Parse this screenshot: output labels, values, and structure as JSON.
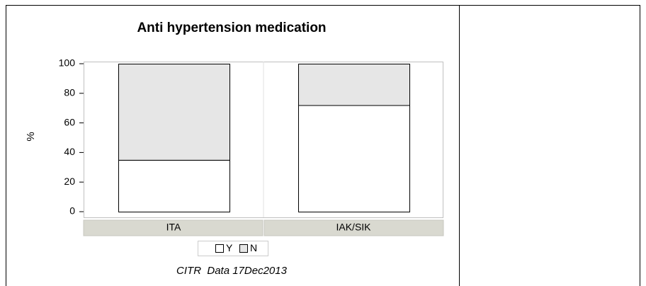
{
  "chart_data": {
    "type": "bar",
    "stacked": true,
    "title": "Anti hypertension medication",
    "ylabel": "%",
    "categories": [
      "ITA",
      "IAK/SIK"
    ],
    "series": [
      {
        "name": "Y",
        "color": "#ffffff",
        "values": [
          35,
          72
        ]
      },
      {
        "name": "N",
        "color": "#e6e6e6",
        "values": [
          65,
          28
        ]
      }
    ],
    "ylim": [
      0,
      100
    ],
    "yticks": [
      0,
      20,
      40,
      60,
      80,
      100
    ],
    "footnote": "CITR  Data 17Dec2013"
  }
}
